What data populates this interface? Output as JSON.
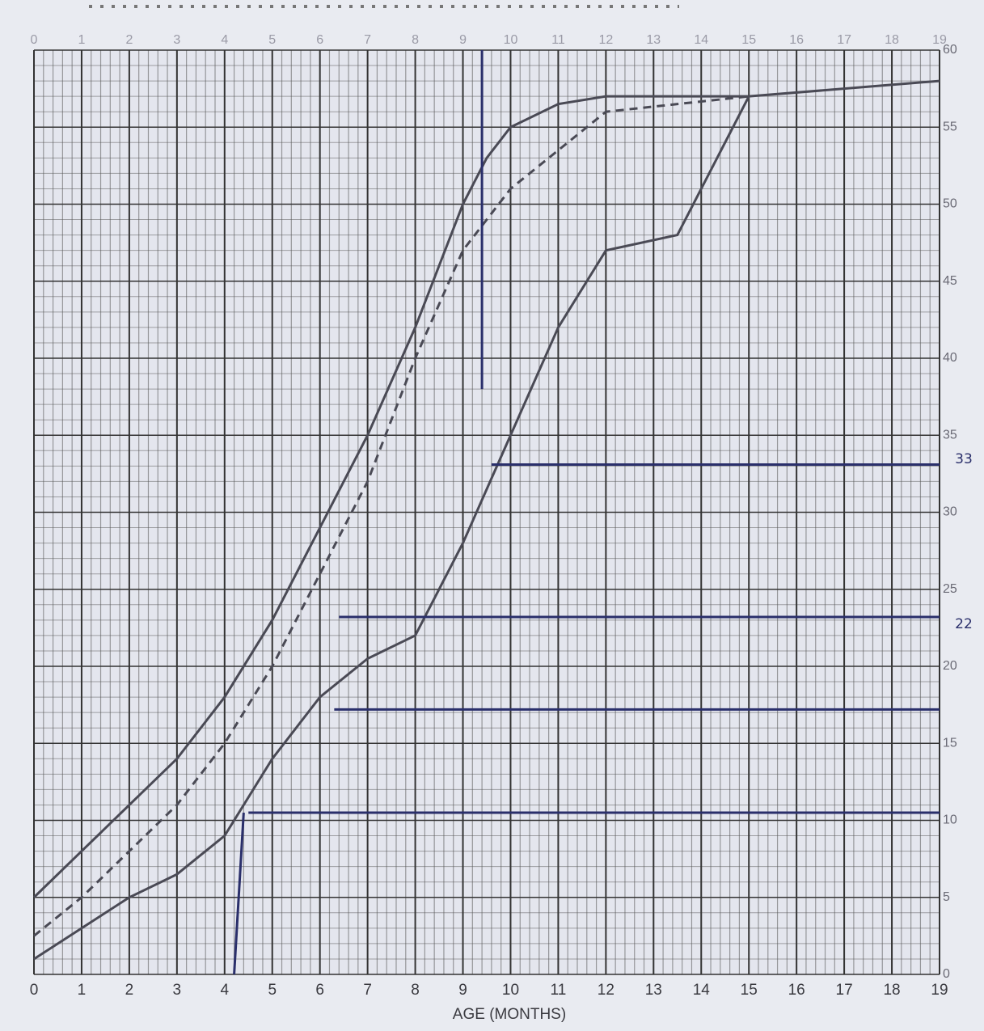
{
  "chart_data": {
    "type": "line",
    "x_label": "AGE (MONTHS)",
    "xlim": [
      0,
      19
    ],
    "xticks": [
      0,
      1,
      2,
      3,
      4,
      5,
      6,
      7,
      8,
      9,
      10,
      11,
      12,
      13,
      14,
      15,
      16,
      17,
      18,
      19
    ],
    "ylim": [
      0,
      60
    ],
    "yticks": [
      0,
      5,
      10,
      15,
      20,
      25,
      30,
      35,
      40,
      45,
      50,
      55,
      60
    ],
    "grid": true,
    "annotations": [
      "22",
      "33"
    ],
    "series": [
      {
        "color": "#4a4a55",
        "style": "solid",
        "x": [
          0,
          1,
          2,
          3,
          4,
          5,
          6,
          7,
          8,
          9,
          9.5,
          10,
          11,
          12,
          15,
          19
        ],
        "values": [
          5,
          8,
          11,
          14,
          18,
          23,
          29,
          35,
          42,
          50,
          53,
          55,
          56.5,
          57,
          57,
          58
        ]
      },
      {
        "color": "#4a4a55",
        "style": "dashed",
        "x": [
          0,
          1,
          2,
          3,
          4,
          5,
          6,
          7,
          8,
          9,
          10,
          12,
          15
        ],
        "values": [
          2.5,
          5,
          8,
          11,
          15,
          20,
          26,
          32,
          40,
          47,
          51,
          56,
          57
        ]
      },
      {
        "color": "#4a4a55",
        "style": "solid",
        "x": [
          0,
          1,
          2,
          3,
          4,
          5,
          6,
          7,
          8,
          9,
          10,
          11,
          12,
          13.5,
          15
        ],
        "values": [
          1,
          3,
          5,
          6.5,
          9,
          14,
          18,
          20.5,
          22,
          28,
          35,
          42,
          47,
          48,
          57
        ]
      },
      {
        "color": "#2a2f6b",
        "style": "solid",
        "x": [
          4.2,
          4.4
        ],
        "values": [
          0,
          10.5
        ]
      },
      {
        "color": "#2a2f6b",
        "style": "solid",
        "x": [
          4.5,
          19
        ],
        "values": [
          10.5,
          10.5
        ]
      },
      {
        "color": "#2a2f6b",
        "style": "solid",
        "x": [
          6.3,
          19
        ],
        "values": [
          17.2,
          17.2
        ]
      },
      {
        "color": "#2a2f6b",
        "style": "solid",
        "x": [
          6.4,
          19
        ],
        "values": [
          23.2,
          23.2
        ]
      },
      {
        "color": "#2a2f6b",
        "style": "solid",
        "x": [
          9.6,
          19
        ],
        "values": [
          33.1,
          33.1
        ]
      },
      {
        "color": "#2a2f6b",
        "style": "solid",
        "x": [
          9.4,
          9.4
        ],
        "values": [
          60,
          38
        ]
      }
    ]
  }
}
